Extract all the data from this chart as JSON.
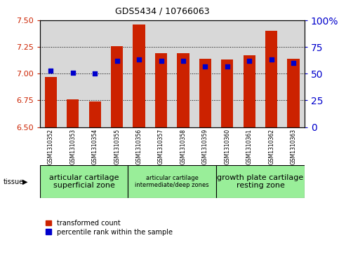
{
  "title": "GDS5434 / 10766063",
  "samples": [
    "GSM1310352",
    "GSM1310353",
    "GSM1310354",
    "GSM1310355",
    "GSM1310356",
    "GSM1310357",
    "GSM1310358",
    "GSM1310359",
    "GSM1310360",
    "GSM1310361",
    "GSM1310362",
    "GSM1310363"
  ],
  "transformed_counts": [
    6.97,
    6.76,
    6.74,
    7.26,
    7.46,
    7.19,
    7.19,
    7.14,
    7.13,
    7.17,
    7.4,
    7.14
  ],
  "percentile_ranks": [
    53,
    51,
    50,
    62,
    63,
    62,
    62,
    57,
    57,
    62,
    63,
    60
  ],
  "ylim_left": [
    6.5,
    7.5
  ],
  "ylim_right": [
    0,
    100
  ],
  "yticks_left": [
    6.5,
    6.75,
    7.0,
    7.25,
    7.5
  ],
  "yticks_right": [
    0,
    25,
    50,
    75,
    100
  ],
  "bar_color": "#cc2200",
  "dot_color": "#0000cc",
  "bar_width": 0.55,
  "legend_red_label": "transformed count",
  "legend_blue_label": "percentile rank within the sample",
  "bg_color": "#d8d8d8",
  "plot_bg": "#ffffff",
  "group_spans": [
    {
      "indices": [
        0,
        1,
        2,
        3
      ],
      "label": "articular cartilage\nsuperficial zone",
      "color": "#99ee99",
      "fontsize": 8
    },
    {
      "indices": [
        4,
        5,
        6,
        7
      ],
      "label": "articular cartilage\nintermediate/deep zones",
      "color": "#99ee99",
      "fontsize": 6
    },
    {
      "indices": [
        8,
        9,
        10,
        11
      ],
      "label": "growth plate cartilage\nresting zone",
      "color": "#99ee99",
      "fontsize": 8
    }
  ]
}
